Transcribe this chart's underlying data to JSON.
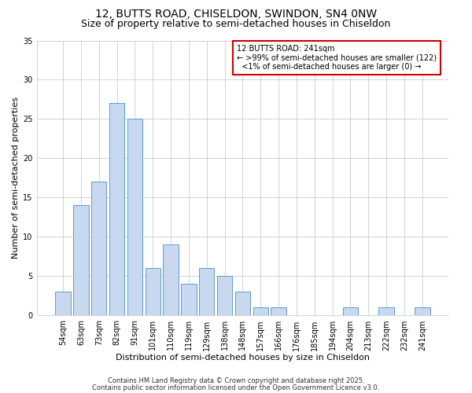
{
  "title1": "12, BUTTS ROAD, CHISELDON, SWINDON, SN4 0NW",
  "title2": "Size of property relative to semi-detached houses in Chiseldon",
  "xlabel": "Distribution of semi-detached houses by size in Chiseldon",
  "ylabel": "Number of semi-detached properties",
  "categories": [
    "54sqm",
    "63sqm",
    "73sqm",
    "82sqm",
    "91sqm",
    "101sqm",
    "110sqm",
    "119sqm",
    "129sqm",
    "138sqm",
    "148sqm",
    "157sqm",
    "166sqm",
    "176sqm",
    "185sqm",
    "194sqm",
    "204sqm",
    "213sqm",
    "222sqm",
    "232sqm",
    "241sqm"
  ],
  "values": [
    3,
    14,
    17,
    27,
    25,
    6,
    9,
    4,
    6,
    5,
    3,
    1,
    1,
    0,
    0,
    0,
    1,
    0,
    1,
    0,
    1
  ],
  "bar_color": "#c8d8ee",
  "bar_edge_color": "#5b9bd5",
  "ylim": [
    0,
    35
  ],
  "yticks": [
    0,
    5,
    10,
    15,
    20,
    25,
    30,
    35
  ],
  "annotation_title": "12 BUTTS ROAD: 241sqm",
  "annotation_line1": "← >99% of semi-detached houses are smaller (122)",
  "annotation_line2": "  <1% of semi-detached houses are larger (0) →",
  "box_color": "#cc0000",
  "footer1": "Contains HM Land Registry data © Crown copyright and database right 2025.",
  "footer2": "Contains public sector information licensed under the Open Government Licence v3.0.",
  "background_color": "#ffffff",
  "grid_color": "#cccccc",
  "title_fontsize": 10,
  "subtitle_fontsize": 9,
  "tick_fontsize": 7,
  "label_fontsize": 8,
  "annotation_fontsize": 7,
  "footer_fontsize": 6
}
